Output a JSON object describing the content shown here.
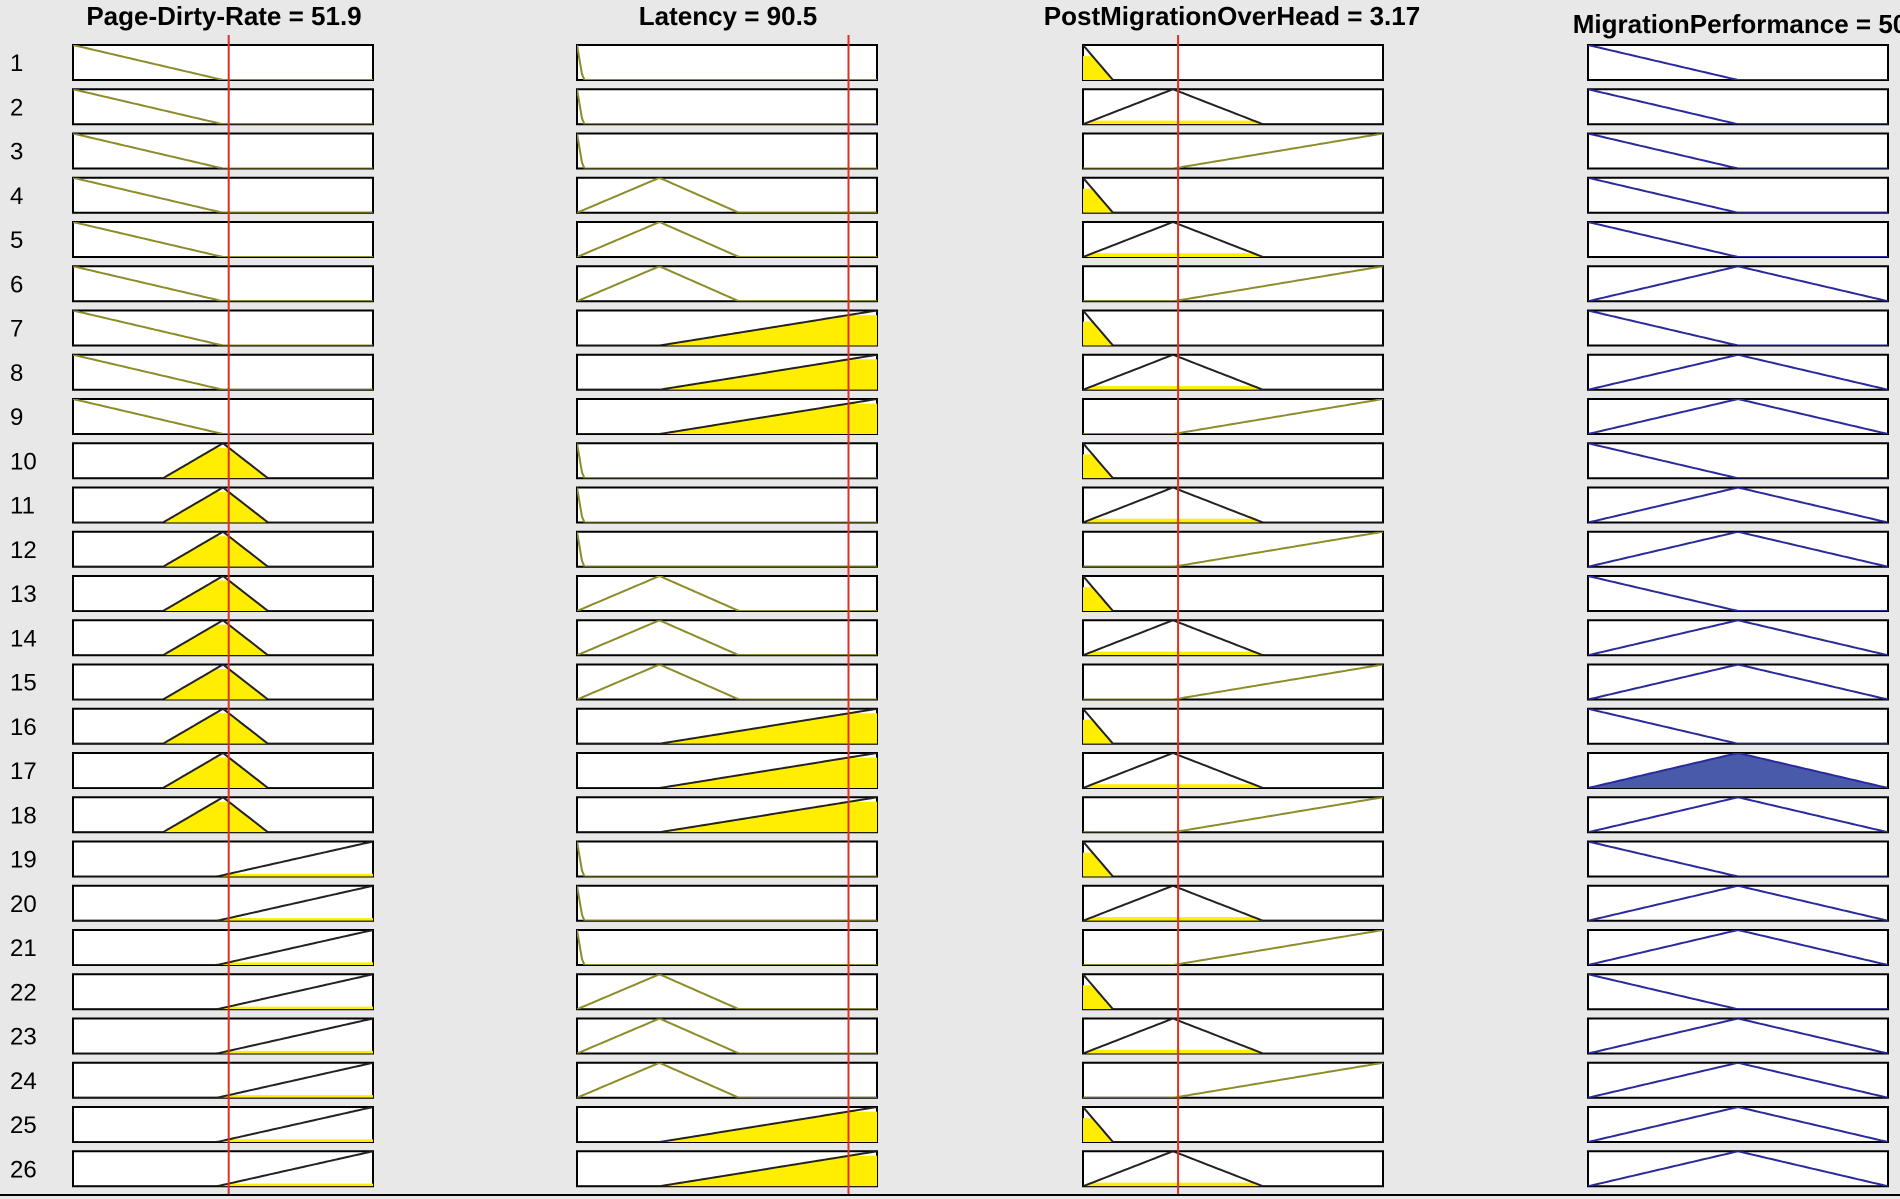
{
  "rule_viewer": {
    "rule_count": 26,
    "rows": [
      "1",
      "2",
      "3",
      "4",
      "5",
      "6",
      "7",
      "8",
      "9",
      "10",
      "11",
      "12",
      "13",
      "14",
      "15",
      "16",
      "17",
      "18",
      "19",
      "20",
      "21",
      "22",
      "23",
      "24",
      "25",
      "26"
    ],
    "columns": [
      {
        "name": "page-dirty-rate",
        "title": "Page-Dirty-Rate = 51.9",
        "kind": "input",
        "current_value": 51.9,
        "input_marker_fraction": 0.519,
        "terms": [
          {
            "name": "low",
            "shape": "trimf",
            "params": [
              -50,
              0,
              50
            ]
          },
          {
            "name": "medium",
            "shape": "trimf",
            "params": [
              30,
              50,
              65
            ]
          },
          {
            "name": "high",
            "shape": "trimf",
            "params": [
              48,
              100,
              150
            ]
          }
        ],
        "rule_terms": [
          0,
          0,
          0,
          0,
          0,
          0,
          0,
          0,
          0,
          1,
          1,
          1,
          1,
          1,
          1,
          1,
          1,
          1,
          2,
          2,
          2,
          2,
          2,
          2,
          2,
          2
        ]
      },
      {
        "name": "latency",
        "title": "Latency = 90.5",
        "kind": "input",
        "current_value": 90.5,
        "input_marker_fraction": 0.905,
        "terms": [
          {
            "name": "low",
            "shape": "trimf",
            "params": [
              -2,
              0,
              2
            ]
          },
          {
            "name": "medium",
            "shape": "trimf",
            "params": [
              0,
              27.5,
              54
            ]
          },
          {
            "name": "high",
            "shape": "trimf",
            "params": [
              27.5,
              100,
              172
            ]
          }
        ],
        "rule_terms": [
          0,
          0,
          0,
          1,
          1,
          1,
          2,
          2,
          2,
          0,
          0,
          0,
          1,
          1,
          1,
          2,
          2,
          2,
          0,
          0,
          0,
          1,
          1,
          1,
          2,
          2
        ]
      },
      {
        "name": "post-migration-overhead",
        "title": "PostMigrationOverHead = 3.17",
        "kind": "input",
        "current_value": 3.17,
        "input_marker_fraction": 0.317,
        "terms": [
          {
            "name": "low",
            "shape": "trimf",
            "params": [
              -10,
              0,
              10
            ]
          },
          {
            "name": "medium",
            "shape": "trimf",
            "params": [
              0,
              30,
              60
            ]
          },
          {
            "name": "high",
            "shape": "trimf",
            "params": [
              30,
              100,
              170
            ]
          }
        ],
        "rule_terms": [
          0,
          1,
          2,
          0,
          1,
          2,
          0,
          1,
          2,
          0,
          1,
          2,
          0,
          1,
          2,
          0,
          1,
          2,
          0,
          1,
          2,
          0,
          1,
          2,
          0,
          1
        ]
      },
      {
        "name": "migration-performance",
        "title": "MigrationPerformance = 50",
        "kind": "output",
        "current_value": 50,
        "terms": [
          {
            "name": "low",
            "shape": "trimf",
            "params": [
              -50,
              0,
              50
            ]
          },
          {
            "name": "medium",
            "shape": "trimf",
            "params": [
              0,
              50,
              100
            ]
          }
        ],
        "rule_terms": [
          0,
          0,
          0,
          0,
          0,
          1,
          0,
          1,
          1,
          0,
          1,
          1,
          0,
          1,
          1,
          0,
          1,
          1,
          0,
          1,
          1,
          0,
          1,
          1,
          1,
          1
        ],
        "activations": [
          0,
          0,
          0,
          0,
          0,
          0,
          0,
          0,
          0,
          0,
          0,
          0,
          0,
          0,
          0,
          0,
          1,
          0,
          0,
          0,
          0,
          0,
          0,
          0,
          0,
          0
        ]
      }
    ],
    "colors": {
      "background": "#e8e8e8",
      "input_curve": "#8c8c2a",
      "input_fill": "#ffee00",
      "output_curve": "#2a2a9a",
      "output_fill": "#4a5aaa",
      "marker": "#e03020",
      "box_border": "#000000"
    }
  }
}
